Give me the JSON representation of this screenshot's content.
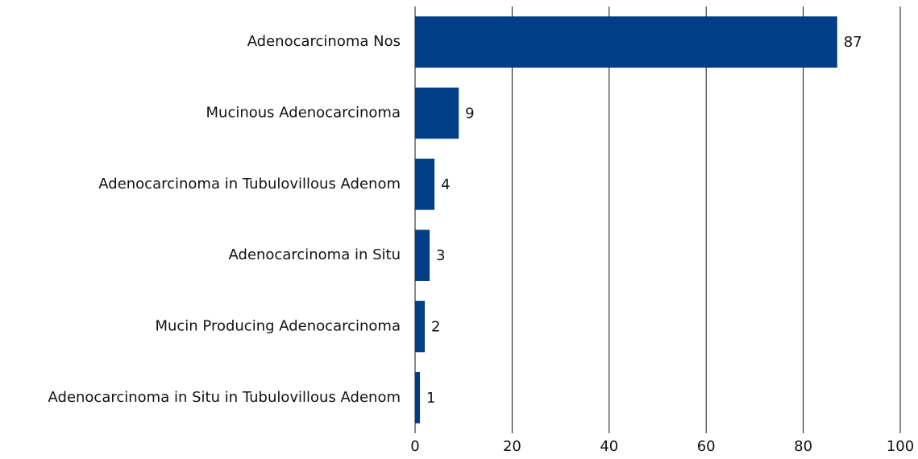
{
  "chart_data": {
    "type": "bar",
    "orientation": "horizontal",
    "categories": [
      "Adenocarcinoma Nos",
      "Mucinous Adenocarcinoma",
      "Adenocarcinoma in Tubulovillous Adenom",
      "Adenocarcinoma in Situ",
      "Mucin Producing Adenocarcinoma",
      "Adenocarcinoma in Situ in Tubulovillous Adenom"
    ],
    "values": [
      87,
      9,
      4,
      3,
      2,
      1
    ],
    "color": "#003f87",
    "xlim": [
      0,
      100
    ],
    "xticks": [
      0,
      20,
      40,
      60,
      80,
      100
    ],
    "grid": true
  }
}
